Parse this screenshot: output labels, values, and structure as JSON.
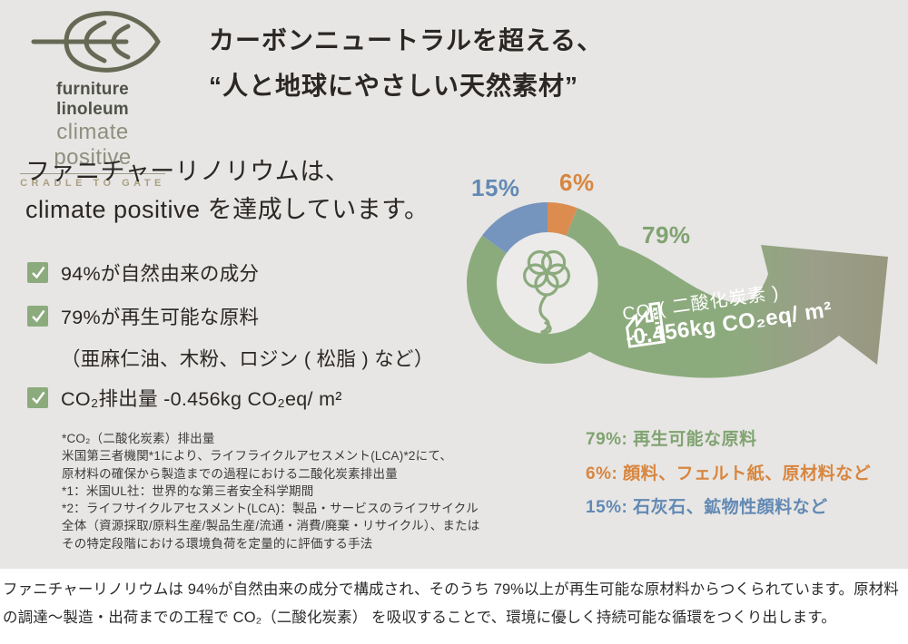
{
  "colors": {
    "background_panel": "#e7e6e4",
    "green": "#8cab7d",
    "blue": "#7695be",
    "orange": "#dd8c4f",
    "arrow_olive": "#98977f",
    "text_dark": "#2b2724",
    "logo_dark": "#50534a",
    "logo_mid": "#8e907e",
    "logo_tan": "#aba083"
  },
  "logo": {
    "brand": "furniture linoleum",
    "tagline": "climate positive",
    "sub": "CRADLE TO GATE"
  },
  "headline": {
    "line1": "カーボンニュートラルを超える、",
    "line2": "“人と地球にやさしい天然素材”"
  },
  "intro": {
    "line1": "ファニチャーリノリウムは、",
    "line2": "climate positive を達成しています。"
  },
  "checklist": {
    "items": [
      {
        "text": "94%が自然由来の成分"
      },
      {
        "text": "79%が再生可能な原料",
        "sub": "（亜麻仁油、木粉、ロジン ( 松脂 ) など）"
      },
      {
        "text": "CO₂排出量 -0.456kg CO₂eq/ m²"
      }
    ]
  },
  "footnotes": {
    "lines": [
      "*CO₂（二酸化炭素）排出量",
      "米国第三者機関*1により、ライフライクルアセスメント(LCA)*2にて、",
      "原材料の確保から製造までの過程における二酸化炭素排出量",
      "*1：米国UL社：世界的な第三者安全科学期間",
      "*2：ライフサイクルアセスメント(LCA)：製品・サービスのライフサイクル",
      "全体（資源採取/原料生産/製品生産/流通・消費/廃棄・リサイクル）、または",
      "その特定段階における環境負荷を定量的に評価する手法"
    ]
  },
  "chart_data": {
    "type": "pie",
    "style": "donut",
    "unit": "%",
    "start_angle_deg": 0,
    "direction": "clockwise",
    "center_icon": "flax-flower",
    "slices": [
      {
        "pct_label": "6%",
        "value": 6,
        "label": "顔料、フェルト紙、原材料など",
        "color": "#dd8c4f",
        "text_color": "#d8863f"
      },
      {
        "pct_label": "79%",
        "value": 79,
        "label": "再生可能な原料",
        "color": "#8cab7d",
        "text_color": "#80a371"
      },
      {
        "pct_label": "15%",
        "value": 15,
        "label": "石灰石、鉱物性顔料など",
        "color": "#7695be",
        "text_color": "#6289b4"
      }
    ],
    "arrow_caption": {
      "line1": "CO₂( 二酸化炭素 )",
      "line2": "-0.456kg CO₂eq/ m²"
    }
  },
  "legend": {
    "items": [
      {
        "text": "79%: 再生可能な原料",
        "color": "#80a371"
      },
      {
        "text": "6%: 顔料、フェルト紙、原材料など",
        "color": "#d8863f"
      },
      {
        "text": "15%: 石灰石、鉱物性顔料など",
        "color": "#6289b4"
      }
    ]
  },
  "footer": {
    "text": "ファニチャーリノリウムは 94%が自然由来の成分で構成され、そのうち 79%以上が再生可能な原材料からつくられています。原材料の調達〜製造・出荷までの工程で CO₂（二酸化炭素） を吸収することで、環境に優しく持続可能な循環をつくり出します。"
  }
}
